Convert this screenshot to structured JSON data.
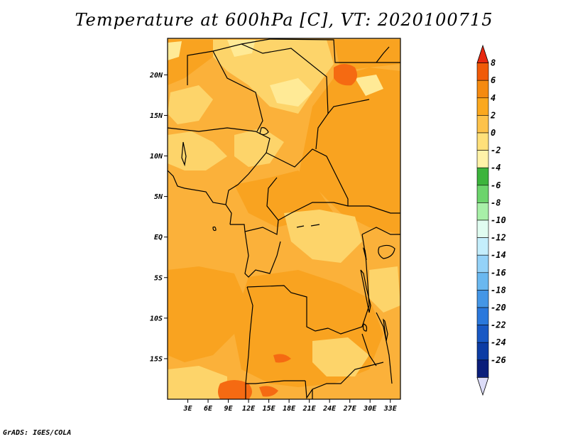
{
  "title": "Temperature at 600hPa [C], VT: 2020100715",
  "credit": "GrADS: IGES/COLA",
  "map": {
    "lat_labels": [
      "20N",
      "15N",
      "10N",
      "5N",
      "EQ",
      "5S",
      "10S",
      "15S"
    ],
    "lon_labels": [
      "3E",
      "6E",
      "9E",
      "12E",
      "15E",
      "18E",
      "21E",
      "24E",
      "27E",
      "30E",
      "33E"
    ],
    "lat_range": [
      -20,
      24.5
    ],
    "lon_range": [
      0,
      34.5
    ]
  },
  "colorbar": {
    "labels": [
      "8",
      "6",
      "4",
      "2",
      "0",
      "-2",
      "-4",
      "-6",
      "-8",
      "-10",
      "-12",
      "-14",
      "-16",
      "-18",
      "-20",
      "-22",
      "-24",
      "-26"
    ],
    "colors": [
      "#e82810",
      "#f05a08",
      "#f58a10",
      "#fba81e",
      "#fdc24a",
      "#ffe07a",
      "#fff2a8",
      "#3cb43c",
      "#6cd46c",
      "#a8f0a8",
      "#e0fcf0",
      "#c4eefc",
      "#94d2f8",
      "#6ab8f0",
      "#4496e6",
      "#2a78dc",
      "#1858c4",
      "#0c3ca4",
      "#0a1e7a",
      "#dcdcf8"
    ]
  }
}
